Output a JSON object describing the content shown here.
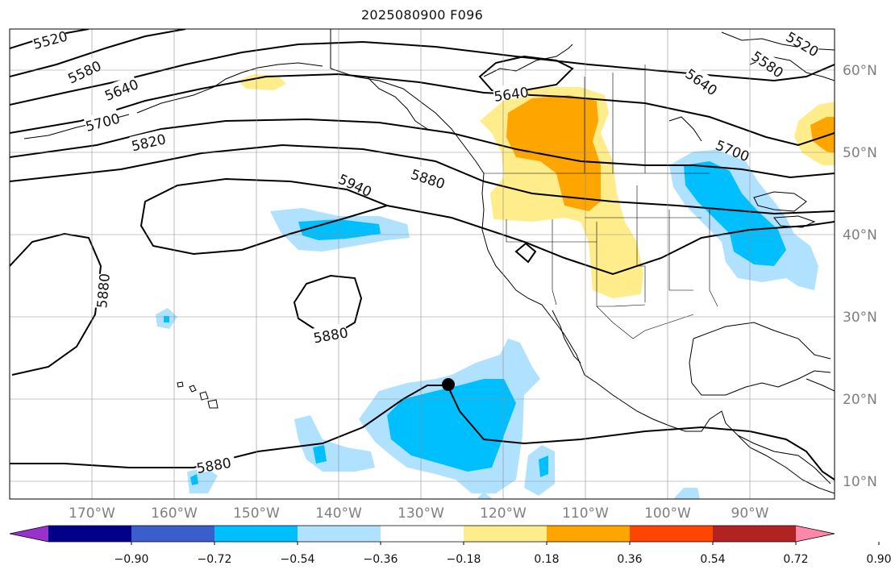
{
  "title": "2025080900 F096",
  "map": {
    "lat_labels": [
      "60°N",
      "50°N",
      "40°N",
      "30°N",
      "20°N",
      "10°N"
    ],
    "lon_labels": [
      "170°W",
      "160°W",
      "150°W",
      "140°W",
      "130°W",
      "120°W",
      "110°W",
      "100°W",
      "90°W"
    ],
    "contour_labels": [
      "5520",
      "5580",
      "5640",
      "5700",
      "5820",
      "5940",
      "5880",
      "5880",
      "5880",
      "5880",
      "5640",
      "5640",
      "5580",
      "5520",
      "5700"
    ],
    "marker": "storm-position-dot"
  },
  "colorbar": {
    "tick_labels": [
      "−0.90",
      "−0.72",
      "−0.54",
      "−0.36",
      "−0.18",
      "0.18",
      "0.36",
      "0.54",
      "0.72",
      "0.90"
    ],
    "colors": [
      "#9932cc",
      "#00008b",
      "#3a5fcd",
      "#00bfff",
      "#b0e2ff",
      "#ffffff",
      "#ffec8b",
      "#ffa500",
      "#ff4500",
      "#b22222",
      "#ff88aa"
    ]
  }
}
